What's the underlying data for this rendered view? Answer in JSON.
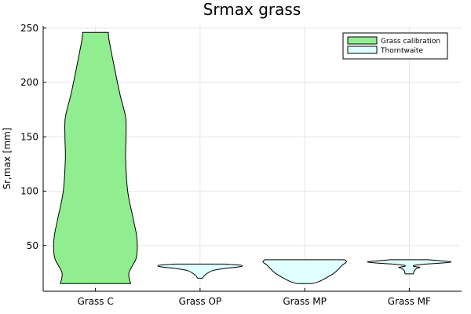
{
  "chart_data": {
    "type": "violin",
    "title": "Srmax grass",
    "xlabel": "",
    "ylabel": "Sr,max [mm]",
    "ylim": [
      8,
      252
    ],
    "yticks": [
      50,
      100,
      150,
      200,
      250
    ],
    "ytick_labels": [
      "50",
      "100",
      "150",
      "200",
      "250"
    ],
    "categories": [
      "Grass C",
      "Grass OP",
      "Grass MP",
      "Grass MF"
    ],
    "grid": true,
    "legend_position": "top-right",
    "series": [
      {
        "name": "Grass calibration",
        "color": "#90ee90",
        "category": "Grass C",
        "profile": [
          [
            15,
            0.84
          ],
          [
            25,
            0.8
          ],
          [
            38,
            0.97
          ],
          [
            50,
            1.0
          ],
          [
            60,
            0.98
          ],
          [
            75,
            0.9
          ],
          [
            100,
            0.77
          ],
          [
            130,
            0.72
          ],
          [
            150,
            0.73
          ],
          [
            168,
            0.72
          ],
          [
            190,
            0.58
          ],
          [
            220,
            0.42
          ],
          [
            240,
            0.32
          ],
          [
            246,
            0.31
          ]
        ]
      },
      {
        "name": "Thorntwaite",
        "color": "#e0ffff",
        "category": "Grass OP",
        "profile": [
          [
            20,
            0.06
          ],
          [
            23,
            0.12
          ],
          [
            27,
            0.3
          ],
          [
            29,
            0.6
          ],
          [
            30,
            0.85
          ],
          [
            31,
            1.0
          ],
          [
            32,
            0.95
          ],
          [
            33,
            0.6
          ]
        ]
      },
      {
        "name": "Thorntwaite",
        "color": "#e0ffff",
        "category": "Grass MP",
        "profile": [
          [
            15,
            0.18
          ],
          [
            17,
            0.35
          ],
          [
            20,
            0.5
          ],
          [
            24,
            0.68
          ],
          [
            28,
            0.8
          ],
          [
            32,
            0.9
          ],
          [
            35,
            1.0
          ],
          [
            37,
            0.95
          ]
        ]
      },
      {
        "name": "Thorntwaite",
        "color": "#e0ffff",
        "category": "Grass MF",
        "profile": [
          [
            24,
            0.1
          ],
          [
            27,
            0.12
          ],
          [
            29,
            0.18
          ],
          [
            30,
            0.25
          ],
          [
            31,
            0.1
          ],
          [
            32,
            0.15
          ],
          [
            33,
            0.4
          ],
          [
            34,
            0.8
          ],
          [
            35,
            1.0
          ],
          [
            36,
            0.75
          ],
          [
            37,
            0.45
          ]
        ]
      }
    ],
    "legend": [
      {
        "label": "Grass calibration",
        "color": "#90ee90"
      },
      {
        "label": "Thorntwaite",
        "color": "#e0ffff"
      }
    ]
  }
}
